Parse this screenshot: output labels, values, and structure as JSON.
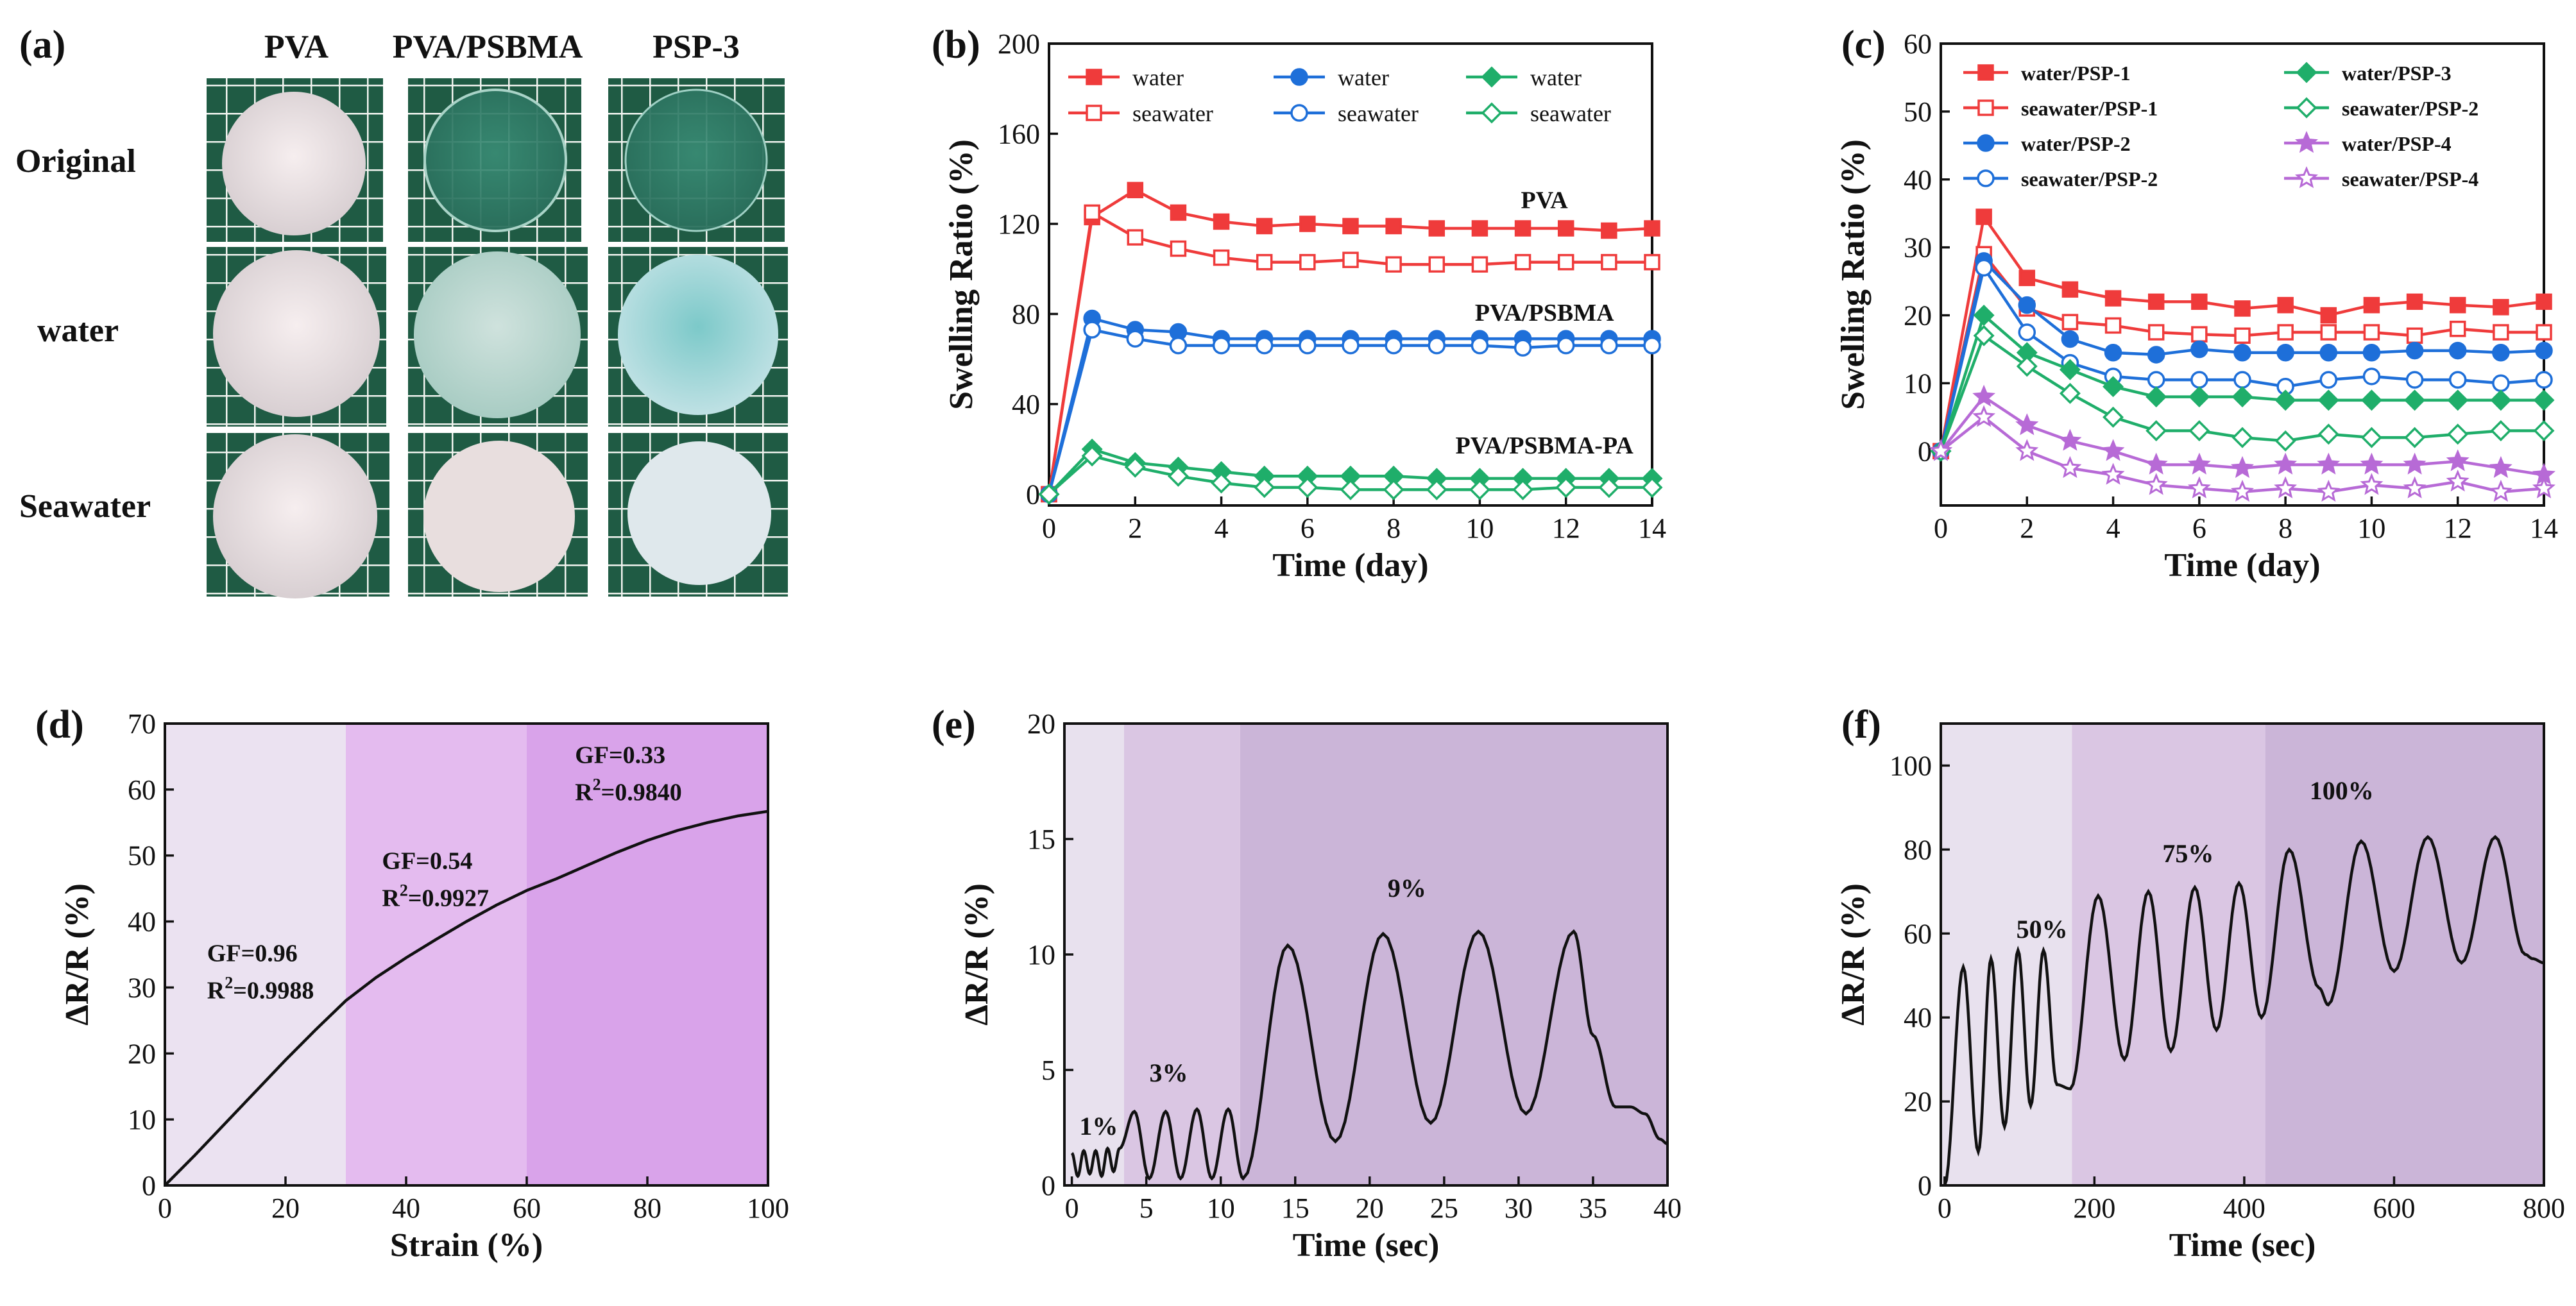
{
  "panel_a": {
    "label": "(a)",
    "columns": [
      "PVA",
      "PVA/PSBMA",
      "PSP-3"
    ],
    "rows": [
      "Original",
      "water",
      "Seawater"
    ]
  },
  "chart_data": [
    {
      "panel": "(b)",
      "type": "line",
      "xlabel": "Time (day)",
      "ylabel": "Swelling Ratio (%)",
      "xlim": [
        0,
        14
      ],
      "ylim": [
        -5,
        200
      ],
      "xticks": [
        0,
        2,
        4,
        6,
        8,
        10,
        12,
        14
      ],
      "yticks": [
        0,
        40,
        80,
        120,
        160,
        200
      ],
      "x": [
        0,
        1,
        2,
        3,
        4,
        5,
        6,
        7,
        8,
        9,
        10,
        11,
        12,
        13,
        14
      ],
      "group_labels": [
        {
          "text": "PVA",
          "x": 11.5,
          "y": 127
        },
        {
          "text": "PVA/PSBMA",
          "x": 11.5,
          "y": 77
        },
        {
          "text": "PVA/PSBMA-PA",
          "x": 11.5,
          "y": 18
        }
      ],
      "series": [
        {
          "name": "water",
          "color": "#ef3b3b",
          "marker": "square",
          "filled": true,
          "values": [
            0,
            123,
            135,
            125,
            121,
            119,
            120,
            119,
            119,
            118,
            118,
            118,
            118,
            117,
            118
          ]
        },
        {
          "name": "seawater",
          "color": "#ef3b3b",
          "marker": "square",
          "filled": false,
          "values": [
            0,
            125,
            114,
            109,
            105,
            103,
            103,
            104,
            102,
            102,
            102,
            103,
            103,
            103,
            103
          ]
        },
        {
          "name": "water",
          "color": "#1e6fd9",
          "marker": "circle",
          "filled": true,
          "values": [
            0,
            78,
            73,
            72,
            69,
            69,
            69,
            69,
            69,
            69,
            69,
            69,
            69,
            69,
            69
          ]
        },
        {
          "name": "seawater",
          "color": "#1e6fd9",
          "marker": "circle",
          "filled": false,
          "values": [
            0,
            73,
            69,
            66,
            66,
            66,
            66,
            66,
            66,
            66,
            66,
            65,
            66,
            66,
            66
          ]
        },
        {
          "name": "water",
          "color": "#1fae6a",
          "marker": "diamond",
          "filled": true,
          "values": [
            0,
            20,
            14,
            12,
            10,
            8,
            8,
            8,
            8,
            7,
            7,
            7,
            7,
            7,
            7
          ]
        },
        {
          "name": "seawater",
          "color": "#1fae6a",
          "marker": "diamond",
          "filled": false,
          "values": [
            0,
            17,
            12,
            8,
            5,
            3,
            3,
            2,
            2,
            2,
            2,
            2,
            3,
            3,
            3
          ]
        }
      ]
    },
    {
      "panel": "(c)",
      "type": "line",
      "xlabel": "Time (day)",
      "ylabel": "Swelling Ratio (%)",
      "xlim": [
        0,
        14
      ],
      "ylim": [
        -8,
        60
      ],
      "xticks": [
        0,
        2,
        4,
        6,
        8,
        10,
        12,
        14
      ],
      "yticks": [
        0,
        10,
        20,
        30,
        40,
        50,
        60
      ],
      "x": [
        0,
        1,
        2,
        3,
        4,
        5,
        6,
        7,
        8,
        9,
        10,
        11,
        12,
        13,
        14
      ],
      "series": [
        {
          "name": "water/PSP-1",
          "color": "#ef3b3b",
          "marker": "square",
          "filled": true,
          "values": [
            0,
            34.5,
            25.5,
            23.8,
            22.5,
            22,
            22,
            21,
            21.5,
            20,
            21.5,
            22,
            21.5,
            21.2,
            22
          ]
        },
        {
          "name": "seawater/PSP-1",
          "color": "#ef3b3b",
          "marker": "square",
          "filled": false,
          "values": [
            0,
            29,
            21,
            19,
            18.5,
            17.5,
            17.2,
            17,
            17.5,
            17.5,
            17.5,
            17,
            18,
            17.5,
            17.5
          ]
        },
        {
          "name": "water/PSP-2",
          "color": "#1e6fd9",
          "marker": "circle",
          "filled": true,
          "values": [
            0,
            28,
            21.5,
            16.5,
            14.5,
            14.2,
            15,
            14.5,
            14.5,
            14.5,
            14.5,
            14.8,
            14.8,
            14.5,
            14.8
          ]
        },
        {
          "name": "seawater/PSP-2",
          "color": "#1e6fd9",
          "marker": "circle",
          "filled": false,
          "values": [
            0,
            27,
            17.5,
            13,
            11,
            10.5,
            10.5,
            10.5,
            9.5,
            10.5,
            11,
            10.5,
            10.5,
            10,
            10.5
          ]
        },
        {
          "name": "water/PSP-3",
          "color": "#1fae6a",
          "marker": "diamond",
          "filled": true,
          "values": [
            0,
            20,
            14.5,
            12,
            9.5,
            8,
            8,
            8,
            7.5,
            7.5,
            7.5,
            7.5,
            7.5,
            7.5,
            7.5
          ]
        },
        {
          "name": "seawater/PSP-2",
          "color": "#1fae6a",
          "marker": "diamond",
          "filled": false,
          "values": [
            0,
            17,
            12.5,
            8.5,
            5,
            3,
            3,
            2,
            1.5,
            2.5,
            2,
            2,
            2.5,
            3,
            3
          ]
        },
        {
          "name": "water/PSP-4",
          "color": "#b76ad6",
          "marker": "star",
          "filled": true,
          "values": [
            0,
            8,
            3.8,
            1.5,
            0,
            -2,
            -2,
            -2.5,
            -2,
            -2,
            -2,
            -2,
            -1.5,
            -2.5,
            -3.5
          ]
        },
        {
          "name": "seawater/PSP-4",
          "color": "#b76ad6",
          "marker": "star",
          "filled": false,
          "values": [
            0,
            5,
            0,
            -2.5,
            -3.5,
            -5,
            -5.5,
            -6,
            -5.5,
            -6,
            -5,
            -5.5,
            -4.5,
            -6,
            -5.5
          ]
        }
      ]
    },
    {
      "panel": "(d)",
      "type": "line",
      "xlabel": "Strain (%)",
      "ylabel": "ΔR/R (%)",
      "xlim": [
        0,
        100
      ],
      "ylim": [
        0,
        70
      ],
      "xticks": [
        0,
        20,
        40,
        60,
        80,
        100
      ],
      "yticks": [
        0,
        10,
        20,
        30,
        40,
        50,
        60,
        70
      ],
      "regions": [
        [
          0,
          30
        ],
        [
          30,
          60
        ],
        [
          60,
          100
        ]
      ],
      "region_colors": [
        "#ebe2f1",
        "#e4bbef",
        "#d9a3ea"
      ],
      "fits": [
        {
          "gf": "GF=0.96",
          "r2": "=0.9988",
          "tx": 7,
          "ty": 34
        },
        {
          "gf": "GF=0.54",
          "r2": "=0.9927",
          "tx": 36,
          "ty": 48
        },
        {
          "gf": "GF=0.33",
          "r2": "=0.9840",
          "tx": 68,
          "ty": 64
        }
      ],
      "x": [
        0,
        5,
        10,
        15,
        20,
        25,
        30,
        35,
        40,
        45,
        50,
        55,
        60,
        65,
        70,
        75,
        80,
        85,
        90,
        95,
        100
      ],
      "values": [
        0,
        4.6,
        9.4,
        14.2,
        19,
        23.6,
        28,
        31.5,
        34.5,
        37.3,
        40,
        42.5,
        44.7,
        46.5,
        48.5,
        50.5,
        52.3,
        53.8,
        55,
        56,
        56.7
      ]
    },
    {
      "panel": "(e)",
      "type": "line",
      "xlabel": "Time (sec)",
      "ylabel": "ΔR/R (%)",
      "xlim": [
        -0.5,
        40
      ],
      "ylim": [
        0,
        20
      ],
      "xticks": [
        0,
        5,
        10,
        15,
        20,
        25,
        30,
        35,
        40
      ],
      "yticks": [
        0,
        5,
        10,
        15,
        20
      ],
      "regions": [
        [
          -0.5,
          3.5
        ],
        [
          3.5,
          11.3
        ],
        [
          11.3,
          40
        ]
      ],
      "region_colors": [
        "#e8e1ee",
        "#dac6e3",
        "#cbb5d8"
      ],
      "region_labels": [
        {
          "text": "1%",
          "x": 1.8,
          "y": 2.2
        },
        {
          "text": "3%",
          "x": 6.5,
          "y": 4.5
        },
        {
          "text": "9%",
          "x": 22.5,
          "y": 12.5
        }
      ],
      "x": [
        0,
        0.4,
        0.8,
        1.2,
        1.6,
        2,
        2.4,
        2.8,
        3.2,
        4.2,
        5.2,
        6.3,
        7.3,
        8.4,
        9.4,
        10.5,
        11.5,
        14.5,
        17.7,
        20.9,
        24.1,
        27.3,
        30.5,
        33.7,
        35,
        36.5,
        37.5,
        38.5,
        39.5,
        40
      ],
      "values": [
        1.4,
        0.4,
        1.5,
        0.5,
        1.5,
        0.4,
        1.6,
        0.6,
        1.6,
        3.2,
        0.3,
        3.2,
        0.3,
        3.3,
        0.3,
        3.3,
        0.3,
        10.4,
        1.9,
        10.9,
        2.7,
        11,
        3.1,
        11,
        6.5,
        3.4,
        3.4,
        3.1,
        2,
        1.8
      ]
    },
    {
      "panel": "(f)",
      "type": "line",
      "xlabel": "Time (sec)",
      "ylabel": "ΔR/R (%)",
      "xlim": [
        -5,
        800
      ],
      "ylim": [
        0,
        110
      ],
      "xticks": [
        0,
        200,
        400,
        600,
        800
      ],
      "yticks": [
        0,
        20,
        40,
        60,
        80,
        100
      ],
      "regions": [
        [
          -5,
          170
        ],
        [
          170,
          428
        ],
        [
          428,
          800
        ]
      ],
      "region_colors": [
        "#e8e1ee",
        "#dac6e3",
        "#cbb5d8"
      ],
      "region_labels": [
        {
          "text": "50%",
          "x": 130,
          "y": 59
        },
        {
          "text": "75%",
          "x": 325,
          "y": 77
        },
        {
          "text": "100%",
          "x": 530,
          "y": 92
        }
      ],
      "x": [
        0,
        25,
        45,
        62,
        80,
        98,
        115,
        132,
        150,
        168,
        205,
        240,
        272,
        302,
        334,
        363,
        393,
        423,
        460,
        500,
        512,
        556,
        600,
        645,
        690,
        735,
        775,
        785,
        800
      ],
      "values": [
        0,
        52,
        8,
        54,
        14,
        56,
        19,
        56,
        24,
        23,
        69,
        30,
        70,
        32,
        71,
        37,
        72,
        40,
        80,
        47,
        43,
        82,
        51,
        83,
        53,
        83,
        55,
        54,
        53
      ]
    }
  ]
}
